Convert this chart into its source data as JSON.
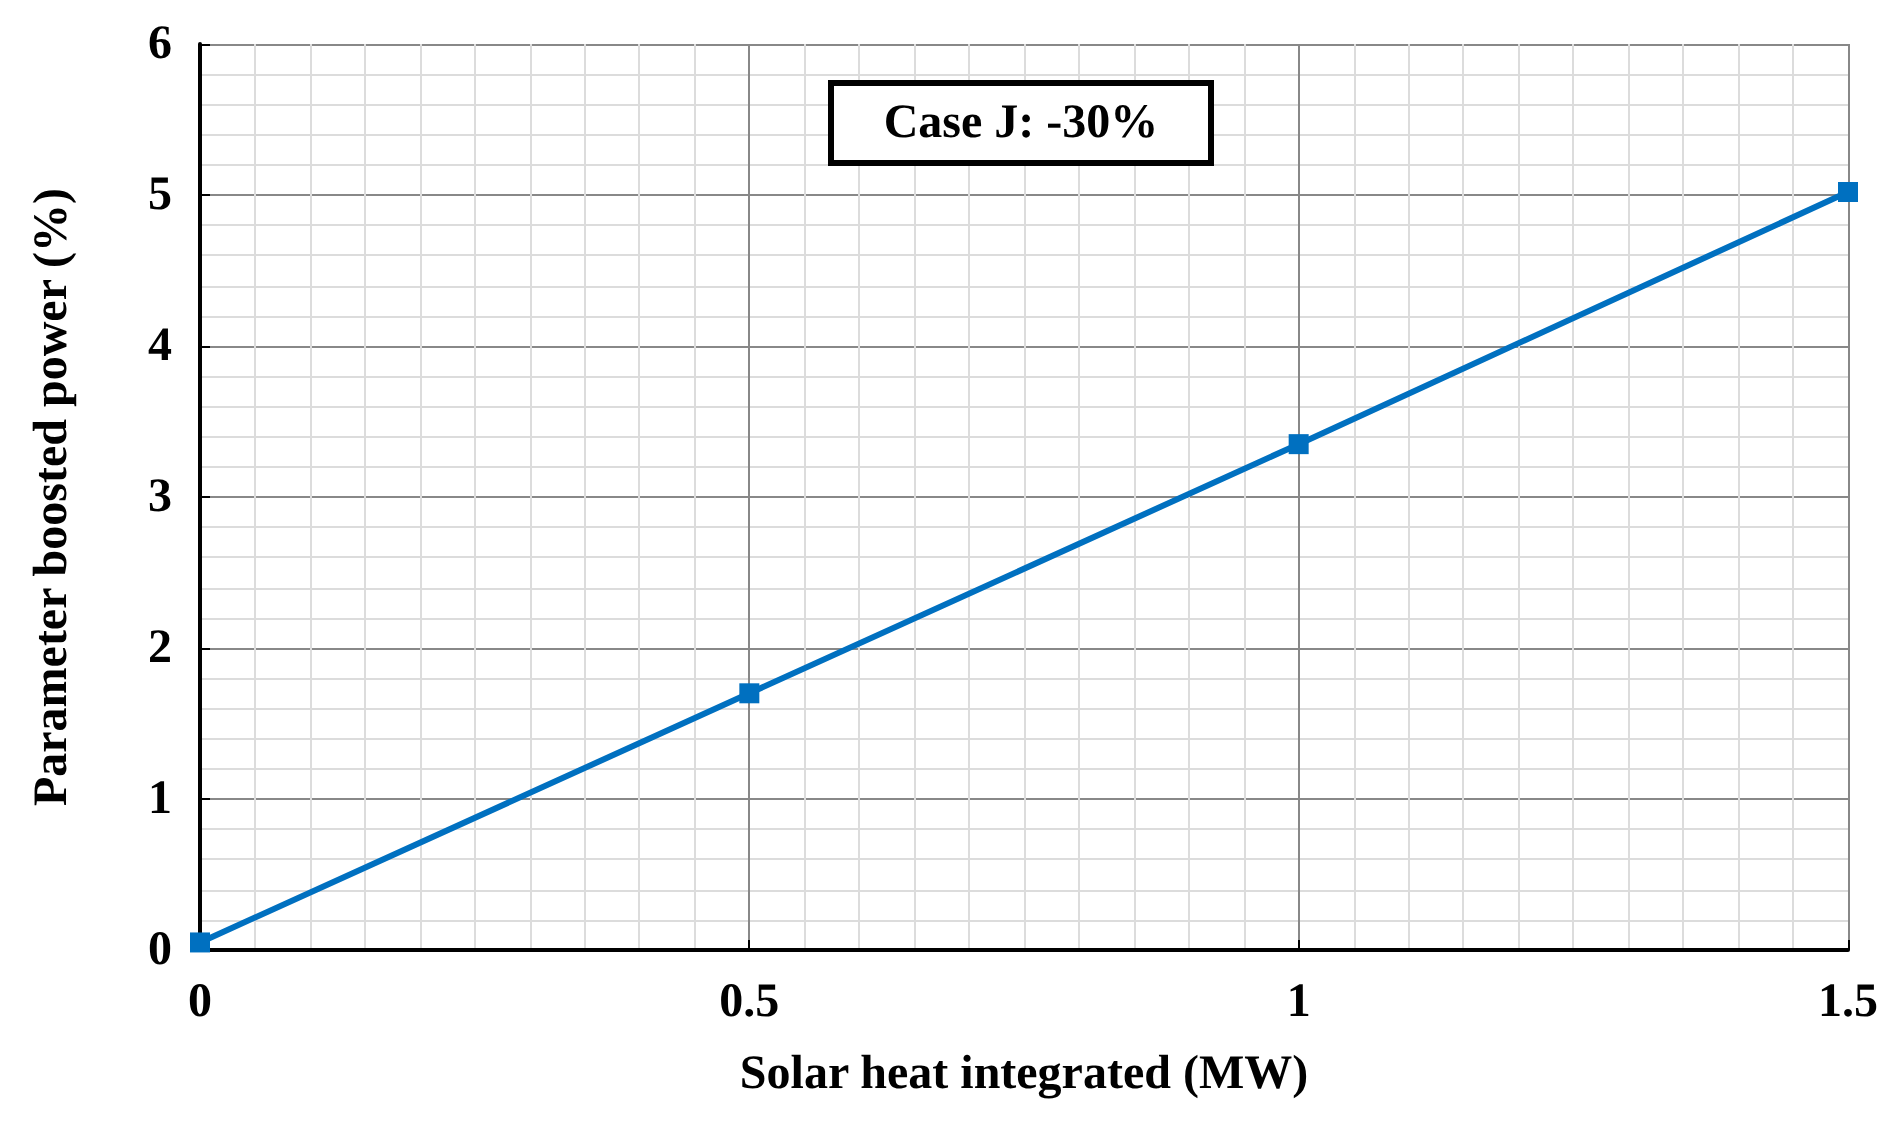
{
  "chart_data": {
    "type": "line",
    "xlabel": "Solar heat integrated (MW)",
    "ylabel": "Parameter boosted power (%)",
    "annotations": [
      "Case J: -30%"
    ],
    "x": [
      0,
      0.5,
      1,
      1.5
    ],
    "series": [
      {
        "color": "#0070c0",
        "values": [
          0.05,
          1.7,
          3.35,
          5.02
        ]
      }
    ],
    "xlim": [
      0,
      1.5
    ],
    "xticks": [
      0,
      0.5,
      1,
      1.5
    ],
    "ylim": [
      0,
      6
    ],
    "yticks": [
      0,
      1,
      2,
      3,
      4,
      5,
      6
    ],
    "grid": true,
    "marker": "square",
    "line_style": "solid"
  }
}
